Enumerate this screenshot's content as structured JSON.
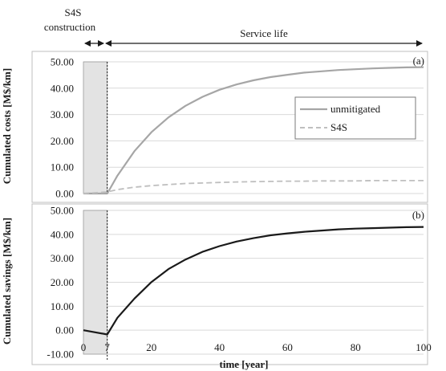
{
  "header": {
    "construction_line1": "S4S",
    "construction_line2": "construction",
    "service_life": "Service life"
  },
  "chart_data": [
    {
      "type": "line",
      "panel_tag": "(a)",
      "ylabel": "Cumulated costs [M$/km]",
      "xlim": [
        0,
        100
      ],
      "ylim": [
        0,
        50
      ],
      "yticks": [
        "0.00",
        "10.00",
        "20.00",
        "30.00",
        "40.00",
        "50.00"
      ],
      "construction_period": [
        0,
        7
      ],
      "legend_position": "top-right",
      "grid": true,
      "series": [
        {
          "name": "unmitigated",
          "color": "#a6a6a6",
          "dash": "solid",
          "x": [
            0,
            7,
            10,
            15,
            20,
            25,
            30,
            35,
            40,
            45,
            50,
            55,
            60,
            65,
            70,
            75,
            80,
            85,
            90,
            95,
            100
          ],
          "y": [
            0,
            0,
            6.8,
            16.1,
            23.3,
            28.9,
            33.3,
            36.7,
            39.4,
            41.4,
            43.0,
            44.2,
            45.1,
            45.9,
            46.4,
            46.9,
            47.2,
            47.5,
            47.7,
            47.9,
            48.0
          ]
        },
        {
          "name": "S4S",
          "color": "#bfbfbf",
          "dash": "dashed",
          "x": [
            0,
            7,
            10,
            15,
            20,
            25,
            30,
            35,
            40,
            45,
            50,
            55,
            60,
            65,
            70,
            75,
            80,
            85,
            90,
            95,
            100
          ],
          "y": [
            0,
            0.6,
            1.5,
            2.4,
            3.0,
            3.4,
            3.8,
            4.0,
            4.2,
            4.4,
            4.5,
            4.6,
            4.7,
            4.7,
            4.8,
            4.8,
            4.8,
            4.9,
            4.9,
            4.9,
            4.9
          ]
        }
      ]
    },
    {
      "type": "line",
      "panel_tag": "(b)",
      "ylabel": "Cumulated savings [M$/km]",
      "xlabel": "time [year]",
      "xlim": [
        0,
        100
      ],
      "ylim": [
        -10,
        50
      ],
      "xticks": [
        "0",
        "7",
        "20",
        "40",
        "60",
        "80",
        "100"
      ],
      "xtick_values": [
        0,
        7,
        20,
        40,
        60,
        80,
        100
      ],
      "yticks": [
        "-10.00",
        "0.00",
        "10.00",
        "20.00",
        "30.00",
        "40.00",
        "50.00"
      ],
      "construction_period": [
        0,
        7
      ],
      "grid": true,
      "series": [
        {
          "color": "#1a1a1a",
          "dash": "solid",
          "x": [
            0,
            7,
            10,
            15,
            20,
            25,
            30,
            35,
            40,
            45,
            50,
            55,
            60,
            65,
            70,
            75,
            80,
            85,
            90,
            95,
            100
          ],
          "y": [
            0,
            -1.8,
            5.2,
            13.2,
            20.1,
            25.5,
            29.5,
            32.7,
            35.1,
            37.0,
            38.4,
            39.6,
            40.4,
            41.1,
            41.6,
            42.1,
            42.4,
            42.6,
            42.8,
            43.0,
            43.1
          ]
        }
      ]
    }
  ]
}
